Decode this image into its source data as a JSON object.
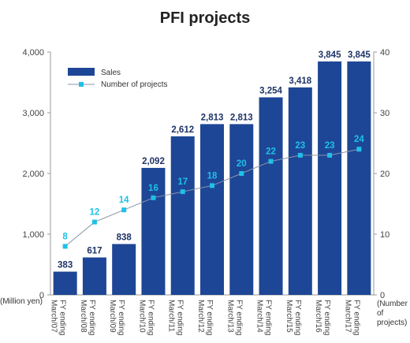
{
  "chart_data": {
    "type": "bar",
    "title": "PFI projects",
    "categories": [
      "FY ending March/07",
      "FY ending March/08",
      "FY ending March/09",
      "FY ending March/10",
      "FY ending March/11",
      "FY ending March/12",
      "FY ending March/13",
      "FY ending March/14",
      "FY ending March/15",
      "FY ending March/16",
      "FY ending March/17"
    ],
    "series": [
      {
        "name": "Sales",
        "type": "bar",
        "axis": "left",
        "color": "#1e4696",
        "values": [
          383,
          617,
          838,
          2092,
          2612,
          2813,
          2813,
          3254,
          3418,
          3845,
          3845
        ]
      },
      {
        "name": "Number of projects",
        "type": "line",
        "axis": "right",
        "color": "#1fc0e8",
        "line_color": "#8a94a8",
        "values": [
          8,
          12,
          14,
          16,
          17,
          18,
          20,
          22,
          23,
          23,
          24
        ]
      }
    ],
    "ylabel_left": "(Million yen)",
    "ylabel_right": "(Number of projects)",
    "ylim_left": [
      0,
      4000
    ],
    "ylim_right": [
      0,
      40
    ],
    "yticks_left": [
      "0",
      "1,000",
      "2,000",
      "3,000",
      "4,000"
    ],
    "yticks_right": [
      "0",
      "10",
      "20",
      "30",
      "40"
    ],
    "bar_labels": [
      "383",
      "617",
      "838",
      "2,092",
      "2,612",
      "2,813",
      "2,813",
      "3,254",
      "3,418",
      "3,845",
      "3,845"
    ],
    "legend_position": "top-left",
    "grid": false
  }
}
